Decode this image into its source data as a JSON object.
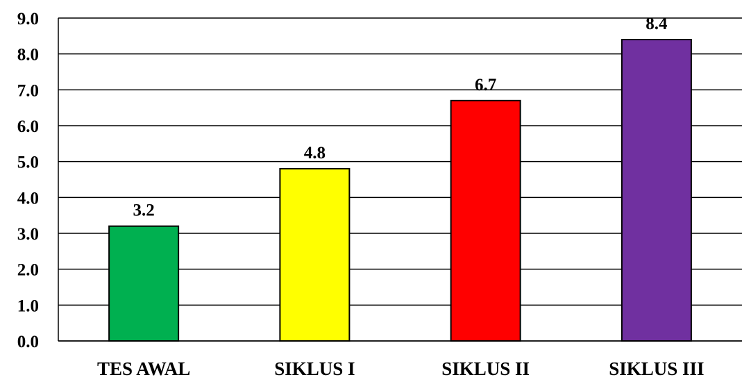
{
  "chart_data": {
    "type": "bar",
    "categories": [
      "TES AWAL",
      "SIKLUS I",
      "SIKLUS II",
      "SIKLUS III"
    ],
    "values": [
      3.2,
      4.8,
      6.7,
      8.4
    ],
    "value_labels": [
      "3.2",
      "4.8",
      "6.7",
      "8.4"
    ],
    "ylim": [
      0,
      9
    ],
    "y_ticks": [
      0,
      1,
      2,
      3,
      4,
      5,
      6,
      7,
      8,
      9
    ],
    "y_tick_labels": [
      "0.0",
      "1.0",
      "2.0",
      "3.0",
      "4.0",
      "5.0",
      "6.0",
      "7.0",
      "8.0",
      "9.0"
    ],
    "bar_colors": [
      "#00b050",
      "#ffff00",
      "#ff0000",
      "#7030a0"
    ],
    "grid": true,
    "legend": "none"
  }
}
